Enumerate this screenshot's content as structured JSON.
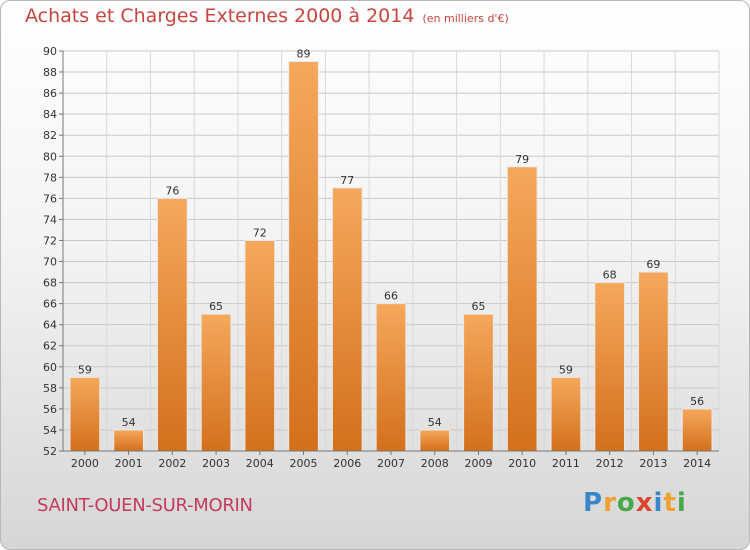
{
  "header": {
    "title": "Achats et Charges Externes 2000 à 2014",
    "unit": "(en milliers d'€)"
  },
  "footer": {
    "city": "SAINT-OUEN-SUR-MORIN",
    "logo": "Proxiti"
  },
  "colors": {
    "bar_top": "#f5a85c",
    "bar_bottom": "#d4701c",
    "title": "#c8463f",
    "city": "#c43b5e"
  },
  "chart_data": {
    "type": "bar",
    "categories": [
      "2000",
      "2001",
      "2002",
      "2003",
      "2004",
      "2005",
      "2006",
      "2007",
      "2008",
      "2009",
      "2010",
      "2011",
      "2012",
      "2013",
      "2014"
    ],
    "values": [
      59,
      54,
      76,
      65,
      72,
      89,
      77,
      66,
      54,
      65,
      79,
      59,
      68,
      69,
      56
    ],
    "ylim": [
      52,
      90
    ],
    "yticks": [
      52,
      54,
      56,
      58,
      60,
      62,
      64,
      66,
      68,
      70,
      72,
      74,
      76,
      78,
      80,
      82,
      84,
      86,
      88,
      90
    ],
    "grid": true
  }
}
